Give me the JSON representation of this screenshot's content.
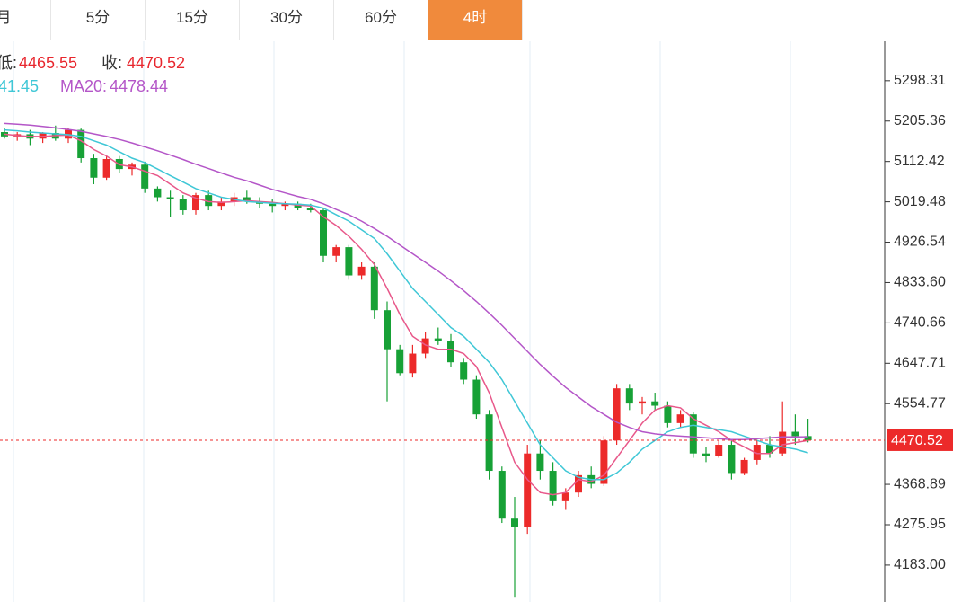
{
  "tabs": [
    "月",
    "5分",
    "15分",
    "30分",
    "60分",
    "4时"
  ],
  "active_tab": 5,
  "info": {
    "low_label": "低:",
    "close_label": "收:",
    "ma10_partial": "41.45",
    "ma20_label": "MA20:"
  },
  "chart_data": {
    "type": "candlestick",
    "up_color": "#ec2a2a",
    "down_color": "#17a136",
    "ohlc": [
      [
        5180,
        5190,
        5165,
        5170
      ],
      [
        5170,
        5180,
        5160,
        5175
      ],
      [
        5175,
        5185,
        5150,
        5165
      ],
      [
        5165,
        5180,
        5155,
        5178
      ],
      [
        5178,
        5195,
        5160,
        5165
      ],
      [
        5165,
        5190,
        5155,
        5185
      ],
      [
        5185,
        5188,
        5110,
        5120
      ],
      [
        5120,
        5130,
        5060,
        5075
      ],
      [
        5075,
        5125,
        5070,
        5118
      ],
      [
        5118,
        5125,
        5085,
        5095
      ],
      [
        5095,
        5110,
        5080,
        5105
      ],
      [
        5105,
        5112,
        5040,
        5050
      ],
      [
        5050,
        5055,
        5020,
        5030
      ],
      [
        5030,
        5045,
        4985,
        5025
      ],
      [
        5025,
        5035,
        4990,
        5000
      ],
      [
        5000,
        5040,
        4990,
        5035
      ],
      [
        5035,
        5045,
        5000,
        5010
      ],
      [
        5010,
        5030,
        5000,
        5020
      ],
      [
        5020,
        5040,
        5010,
        5030
      ],
      [
        5030,
        5045,
        5015,
        5020
      ],
      [
        5020,
        5030,
        5005,
        5015
      ],
      [
        5015,
        5025,
        4995,
        5010
      ],
      [
        5010,
        5020,
        5000,
        5015
      ],
      [
        5015,
        5020,
        5000,
        5005
      ],
      [
        5005,
        5015,
        4995,
        5000
      ],
      [
        5000,
        5005,
        4880,
        4895
      ],
      [
        4895,
        4920,
        4880,
        4915
      ],
      [
        4915,
        4920,
        4840,
        4850
      ],
      [
        4850,
        4880,
        4840,
        4870
      ],
      [
        4870,
        4880,
        4750,
        4770
      ],
      [
        4770,
        4790,
        4560,
        4680
      ],
      [
        4680,
        4690,
        4620,
        4625
      ],
      [
        4625,
        4690,
        4615,
        4670
      ],
      [
        4670,
        4720,
        4660,
        4705
      ],
      [
        4705,
        4730,
        4690,
        4700
      ],
      [
        4700,
        4715,
        4640,
        4650
      ],
      [
        4650,
        4660,
        4600,
        4610
      ],
      [
        4610,
        4620,
        4520,
        4530
      ],
      [
        4530,
        4540,
        4380,
        4400
      ],
      [
        4400,
        4410,
        4280,
        4290
      ],
      [
        4290,
        4340,
        4110,
        4270
      ],
      [
        4270,
        4460,
        4255,
        4440
      ],
      [
        4440,
        4470,
        4380,
        4400
      ],
      [
        4400,
        4420,
        4320,
        4330
      ],
      [
        4330,
        4360,
        4310,
        4350
      ],
      [
        4350,
        4400,
        4340,
        4390
      ],
      [
        4390,
        4410,
        4360,
        4370
      ],
      [
        4370,
        4480,
        4365,
        4470
      ],
      [
        4470,
        4600,
        4460,
        4590
      ],
      [
        4590,
        4600,
        4540,
        4555
      ],
      [
        4555,
        4570,
        4530,
        4560
      ],
      [
        4560,
        4580,
        4540,
        4550
      ],
      [
        4550,
        4560,
        4500,
        4510
      ],
      [
        4510,
        4540,
        4500,
        4530
      ],
      [
        4530,
        4535,
        4430,
        4440
      ],
      [
        4440,
        4455,
        4420,
        4435
      ],
      [
        4435,
        4470,
        4430,
        4460
      ],
      [
        4460,
        4470,
        4380,
        4395
      ],
      [
        4395,
        4430,
        4390,
        4425
      ],
      [
        4425,
        4470,
        4415,
        4460
      ],
      [
        4460,
        4480,
        4430,
        4440
      ],
      [
        4440,
        4560,
        4435,
        4490
      ],
      [
        4490,
        4530,
        4460,
        4480
      ],
      [
        4480,
        4520,
        4465.55,
        4470.52
      ]
    ],
    "series": [
      {
        "color": "#e8588a",
        "values": [
          5175,
          5172,
          5170,
          5170,
          5172,
          5173,
          5160,
          5140,
          5125,
          5105,
          5100,
          5090,
          5080,
          5060,
          5040,
          5028,
          5020,
          5018,
          5020,
          5022,
          5020,
          5018,
          5015,
          5012,
          5010,
          4985,
          4965,
          4940,
          4910,
          4875,
          4820,
          4760,
          4710,
          4690,
          4680,
          4680,
          4670,
          4640,
          4580,
          4500,
          4420,
          4380,
          4350,
          4345,
          4350,
          4380,
          4375,
          4390,
          4430,
          4470,
          4510,
          4540,
          4550,
          4545,
          4520,
          4505,
          4490,
          4470,
          4455,
          4440,
          4440,
          4460,
          4465,
          4470
        ]
      },
      {
        "color": "#3fc7d6",
        "values": [
          5185,
          5183,
          5180,
          5178,
          5176,
          5174,
          5170,
          5160,
          5150,
          5135,
          5120,
          5110,
          5095,
          5080,
          5065,
          5050,
          5040,
          5030,
          5025,
          5020,
          5018,
          5016,
          5015,
          5014,
          5012,
          5005,
          4990,
          4975,
          4955,
          4935,
          4900,
          4860,
          4820,
          4790,
          4760,
          4730,
          4710,
          4680,
          4650,
          4610,
          4560,
          4510,
          4460,
          4430,
          4400,
          4385,
          4380,
          4380,
          4395,
          4420,
          4450,
          4470,
          4490,
          4500,
          4505,
          4500,
          4495,
          4490,
          4480,
          4470,
          4460,
          4455,
          4450,
          4441.45
        ]
      },
      {
        "color": "#b456c8",
        "values": [
          5200,
          5198,
          5196,
          5193,
          5190,
          5186,
          5182,
          5176,
          5170,
          5163,
          5155,
          5146,
          5137,
          5127,
          5117,
          5106,
          5096,
          5086,
          5076,
          5068,
          5058,
          5048,
          5040,
          5032,
          5025,
          5015,
          5002,
          4990,
          4975,
          4958,
          4940,
          4920,
          4900,
          4880,
          4860,
          4838,
          4815,
          4790,
          4763,
          4735,
          4705,
          4675,
          4645,
          4618,
          4592,
          4570,
          4548,
          4530,
          4512,
          4500,
          4490,
          4485,
          4482,
          4480,
          4478,
          4476,
          4474,
          4472,
          4472,
          4474,
          4476,
          4478,
          4478,
          4478.44
        ]
      }
    ],
    "ylim": [
      4098,
      5389
    ],
    "yticks": [
      5298.31,
      5205.36,
      5112.42,
      5019.48,
      4926.54,
      {
        "value": 4833.6,
        "label": "4833.60"
      },
      4740.66,
      4647.71,
      4554.77,
      4368.89,
      4275.95,
      {
        "value": 4183,
        "label": "4183.00"
      }
    ],
    "last_price_color": "#ec2a2a"
  }
}
